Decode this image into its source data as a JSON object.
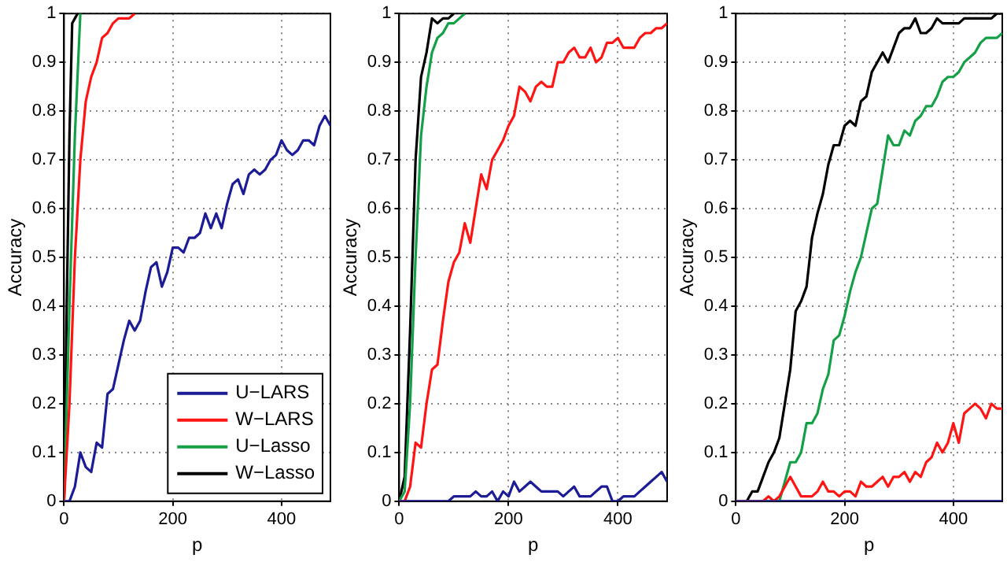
{
  "chart_data": [
    {
      "type": "line",
      "xlabel": "p",
      "ylabel": "Accuracy",
      "xlim": [
        0,
        490
      ],
      "ylim": [
        0,
        1
      ],
      "xticks": [
        0,
        200,
        400
      ],
      "yticks": [
        0,
        0.1,
        0.2,
        0.3,
        0.4,
        0.5,
        0.6,
        0.7,
        0.8,
        0.9,
        1
      ],
      "grid": true,
      "legend": "bottom right",
      "marker": "none",
      "line_style": "solid",
      "series": [
        {
          "name": "U−LARS",
          "color": "#1c1c96",
          "x": [
            0,
            10,
            20,
            30,
            40,
            50,
            60,
            70,
            80,
            90,
            100,
            110,
            120,
            130,
            140,
            150,
            160,
            170,
            180,
            190,
            200,
            210,
            220,
            230,
            240,
            250,
            260,
            270,
            280,
            290,
            300,
            310,
            320,
            330,
            340,
            350,
            360,
            370,
            380,
            390,
            400,
            410,
            420,
            430,
            440,
            450,
            460,
            470,
            480,
            490
          ],
          "values": [
            0,
            0,
            0.03,
            0.1,
            0.07,
            0.06,
            0.12,
            0.11,
            0.22,
            0.23,
            0.28,
            0.33,
            0.37,
            0.35,
            0.37,
            0.43,
            0.48,
            0.49,
            0.44,
            0.47,
            0.52,
            0.52,
            0.51,
            0.54,
            0.54,
            0.55,
            0.59,
            0.56,
            0.59,
            0.56,
            0.61,
            0.65,
            0.66,
            0.63,
            0.67,
            0.68,
            0.67,
            0.68,
            0.7,
            0.71,
            0.74,
            0.72,
            0.71,
            0.72,
            0.74,
            0.74,
            0.73,
            0.77,
            0.79,
            0.77
          ]
        },
        {
          "name": "W−LARS",
          "color": "#ff1414",
          "x": [
            0,
            10,
            20,
            30,
            40,
            50,
            60,
            70,
            80,
            90,
            100,
            110,
            120,
            130
          ],
          "values": [
            0,
            0.2,
            0.5,
            0.7,
            0.82,
            0.87,
            0.9,
            0.95,
            0.96,
            0.98,
            0.99,
            0.99,
            0.99,
            1
          ]
        },
        {
          "name": "U−Lasso",
          "color": "#14a046",
          "x": [
            0,
            10,
            20,
            30
          ],
          "values": [
            0,
            0.4,
            0.75,
            1
          ]
        },
        {
          "name": "W−Lasso",
          "color": "#000000",
          "x": [
            0,
            5,
            10,
            15,
            20,
            25
          ],
          "values": [
            0,
            0.4,
            0.75,
            0.98,
            0.99,
            1
          ]
        }
      ]
    },
    {
      "type": "line",
      "xlabel": "p",
      "ylabel": "Accuracy",
      "xlim": [
        0,
        490
      ],
      "ylim": [
        0,
        1
      ],
      "xticks": [
        0,
        200,
        400
      ],
      "yticks": [
        0,
        0.1,
        0.2,
        0.3,
        0.4,
        0.5,
        0.6,
        0.7,
        0.8,
        0.9,
        1
      ],
      "grid": true,
      "marker": "none",
      "line_style": "solid",
      "series": [
        {
          "color": "#1c1c96",
          "x": [
            0,
            90,
            100,
            110,
            120,
            130,
            140,
            150,
            160,
            170,
            180,
            190,
            200,
            210,
            220,
            230,
            240,
            250,
            260,
            270,
            280,
            290,
            300,
            310,
            320,
            330,
            340,
            350,
            360,
            370,
            380,
            390,
            400,
            410,
            420,
            430,
            440,
            450,
            460,
            470,
            480,
            490
          ],
          "values": [
            0,
            0,
            0.01,
            0.01,
            0.01,
            0.01,
            0.02,
            0.01,
            0.01,
            0.02,
            0,
            0.02,
            0.01,
            0.04,
            0.02,
            0.03,
            0.04,
            0.03,
            0.02,
            0.02,
            0.02,
            0.02,
            0.01,
            0.02,
            0.03,
            0.01,
            0.01,
            0.01,
            0.02,
            0.03,
            0.03,
            0,
            0,
            0.01,
            0.01,
            0.01,
            0.02,
            0.03,
            0.04,
            0.05,
            0.06,
            0.04
          ]
        },
        {
          "color": "#ff1414",
          "x": [
            0,
            10,
            20,
            30,
            40,
            50,
            60,
            70,
            80,
            90,
            100,
            110,
            120,
            130,
            140,
            150,
            160,
            170,
            180,
            190,
            200,
            210,
            220,
            230,
            240,
            250,
            260,
            270,
            280,
            290,
            300,
            310,
            320,
            330,
            340,
            350,
            360,
            370,
            380,
            390,
            400,
            410,
            420,
            430,
            440,
            450,
            460,
            470,
            480,
            490
          ],
          "values": [
            0,
            0,
            0.03,
            0.12,
            0.11,
            0.2,
            0.27,
            0.28,
            0.37,
            0.45,
            0.49,
            0.51,
            0.57,
            0.53,
            0.6,
            0.67,
            0.64,
            0.7,
            0.72,
            0.74,
            0.77,
            0.79,
            0.85,
            0.84,
            0.82,
            0.85,
            0.86,
            0.85,
            0.85,
            0.9,
            0.9,
            0.92,
            0.93,
            0.91,
            0.91,
            0.93,
            0.9,
            0.91,
            0.94,
            0.94,
            0.95,
            0.93,
            0.93,
            0.93,
            0.95,
            0.96,
            0.96,
            0.97,
            0.97,
            0.98
          ]
        },
        {
          "color": "#14a046",
          "x": [
            0,
            10,
            20,
            30,
            40,
            50,
            60,
            70,
            80,
            90,
            100,
            110,
            120
          ],
          "values": [
            0,
            0.02,
            0.2,
            0.5,
            0.75,
            0.85,
            0.92,
            0.95,
            0.96,
            0.98,
            0.98,
            0.99,
            1
          ]
        },
        {
          "color": "#000000",
          "x": [
            0,
            10,
            20,
            30,
            40,
            50,
            60,
            70,
            80,
            90,
            100
          ],
          "values": [
            0,
            0.05,
            0.35,
            0.7,
            0.87,
            0.92,
            0.99,
            0.98,
            0.99,
            0.99,
            1
          ]
        }
      ]
    },
    {
      "type": "line",
      "xlabel": "p",
      "ylabel": "Accuracy",
      "xlim": [
        0,
        490
      ],
      "ylim": [
        0,
        1
      ],
      "xticks": [
        0,
        200,
        400
      ],
      "yticks": [
        0,
        0.1,
        0.2,
        0.3,
        0.4,
        0.5,
        0.6,
        0.7,
        0.8,
        0.9,
        1
      ],
      "grid": true,
      "marker": "none",
      "line_style": "solid",
      "series": [
        {
          "color": "#1c1c96",
          "x": [
            0,
            490
          ],
          "values": [
            0,
            0
          ]
        },
        {
          "color": "#ff1414",
          "x": [
            0,
            50,
            60,
            70,
            80,
            90,
            100,
            110,
            120,
            130,
            140,
            150,
            160,
            170,
            180,
            190,
            200,
            210,
            220,
            230,
            240,
            250,
            260,
            270,
            280,
            290,
            300,
            310,
            320,
            330,
            340,
            350,
            360,
            370,
            380,
            390,
            400,
            410,
            420,
            430,
            440,
            450,
            460,
            470,
            480,
            490
          ],
          "values": [
            0,
            0,
            0.01,
            0,
            0.01,
            0.03,
            0.05,
            0.03,
            0.01,
            0.01,
            0.01,
            0.02,
            0.04,
            0.02,
            0.02,
            0.01,
            0.02,
            0.02,
            0.01,
            0.04,
            0.03,
            0.03,
            0.04,
            0.05,
            0.03,
            0.05,
            0.05,
            0.06,
            0.04,
            0.06,
            0.05,
            0.08,
            0.09,
            0.12,
            0.1,
            0.12,
            0.16,
            0.12,
            0.18,
            0.19,
            0.2,
            0.19,
            0.17,
            0.2,
            0.19,
            0.19
          ]
        },
        {
          "color": "#14a046",
          "x": [
            0,
            70,
            80,
            90,
            100,
            110,
            120,
            130,
            140,
            150,
            160,
            170,
            180,
            190,
            200,
            210,
            220,
            230,
            240,
            250,
            260,
            270,
            280,
            290,
            300,
            310,
            320,
            330,
            340,
            350,
            360,
            370,
            380,
            390,
            400,
            410,
            420,
            430,
            440,
            450,
            460,
            470,
            480,
            490
          ],
          "values": [
            0,
            0,
            0,
            0.04,
            0.08,
            0.08,
            0.1,
            0.16,
            0.16,
            0.18,
            0.23,
            0.26,
            0.33,
            0.34,
            0.38,
            0.43,
            0.47,
            0.5,
            0.55,
            0.6,
            0.61,
            0.68,
            0.75,
            0.73,
            0.73,
            0.76,
            0.75,
            0.78,
            0.79,
            0.81,
            0.81,
            0.83,
            0.86,
            0.87,
            0.87,
            0.88,
            0.9,
            0.91,
            0.92,
            0.94,
            0.95,
            0.95,
            0.95,
            0.96
          ]
        },
        {
          "color": "#000000",
          "x": [
            0,
            20,
            30,
            40,
            50,
            60,
            70,
            80,
            90,
            100,
            110,
            120,
            130,
            140,
            150,
            160,
            170,
            180,
            190,
            200,
            210,
            220,
            230,
            240,
            250,
            260,
            270,
            280,
            290,
            300,
            310,
            320,
            330,
            340,
            350,
            360,
            370,
            380,
            390,
            400,
            410,
            420,
            430,
            440,
            450,
            460,
            470,
            480,
            490
          ],
          "values": [
            0,
            0,
            0.02,
            0.02,
            0.05,
            0.08,
            0.1,
            0.13,
            0.2,
            0.27,
            0.39,
            0.41,
            0.44,
            0.54,
            0.59,
            0.63,
            0.69,
            0.73,
            0.73,
            0.77,
            0.78,
            0.77,
            0.82,
            0.83,
            0.88,
            0.9,
            0.92,
            0.9,
            0.93,
            0.96,
            0.97,
            0.97,
            0.99,
            0.96,
            0.96,
            0.97,
            0.99,
            0.98,
            0.98,
            0.98,
            0.98,
            0.99,
            0.99,
            0.99,
            0.99,
            0.99,
            0.99,
            1,
            1
          ]
        }
      ]
    }
  ]
}
